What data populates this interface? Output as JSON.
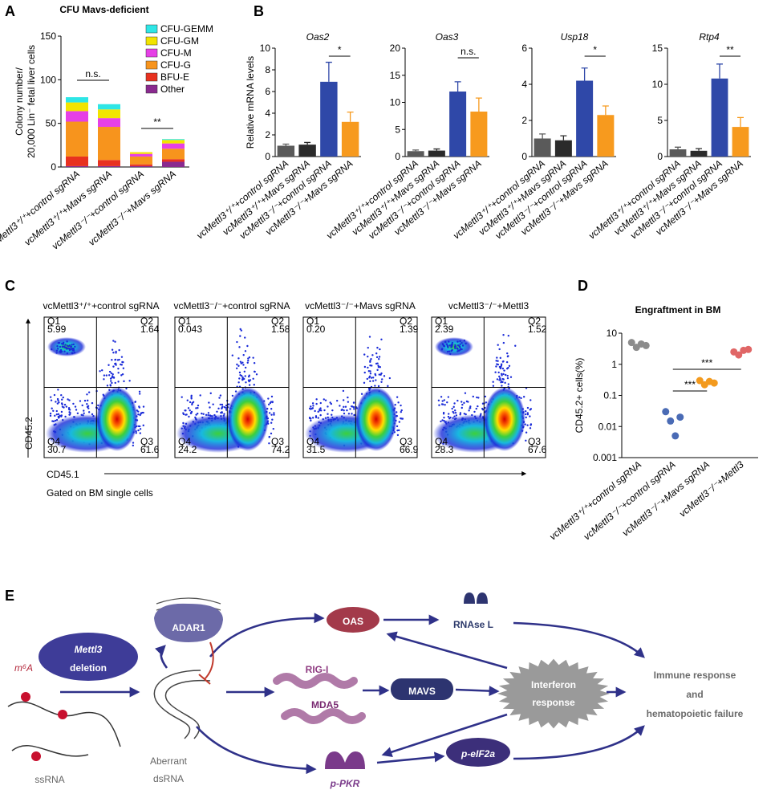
{
  "panel_labels": [
    "A",
    "B",
    "C",
    "D",
    "E"
  ],
  "chart_data": [
    {
      "type": "stacked-bar",
      "title": "CFU Mavs-deficient",
      "y_label": [
        "Colony number/",
        "20,000 Lin⁻ fetal liver cells"
      ],
      "categories": [
        "vcMettl3⁺/⁺+control sgRNA",
        "vcMettl3⁺/⁺+Mavs sgRNA",
        "vcMettl3⁻/⁻+control sgRNA",
        "vcMettl3⁻/⁻+Mavs sgRNA"
      ],
      "series": [
        {
          "name": "CFU-GEMM",
          "color": "#2ee6e6",
          "values": [
            6,
            6,
            0,
            1
          ]
        },
        {
          "name": "CFU-GM",
          "color": "#f2e400",
          "values": [
            10,
            10,
            2,
            4
          ]
        },
        {
          "name": "CFU-M",
          "color": "#e640e6",
          "values": [
            12,
            10,
            3,
            6
          ]
        },
        {
          "name": "CFU-G",
          "color": "#f7941d",
          "values": [
            40,
            38,
            9,
            12
          ]
        },
        {
          "name": "BFU-E",
          "color": "#e8311f",
          "values": [
            11,
            7,
            2,
            3
          ]
        },
        {
          "name": "Other",
          "color": "#8a2a8f",
          "values": [
            1,
            1,
            1,
            6
          ]
        }
      ],
      "ylim": [
        0,
        150
      ],
      "yticks": [
        0,
        50,
        100,
        150
      ],
      "annotations": [
        "n.s.",
        "**"
      ]
    },
    {
      "type": "bar",
      "title": "Oas2",
      "y_label": "Relative mRNA levels",
      "categories": [
        "vcMettl3⁺/⁺+control sgRNA",
        "vcMettl3⁺/⁺+Mavs sgRNA",
        "vcMettl3⁻/⁻+control sgRNA",
        "vcMettl3⁻/⁻+Mavs sgRNA"
      ],
      "colors": [
        "#5a5a5a",
        "#2b2b2b",
        "#2f48a8",
        "#f79a1e"
      ],
      "values": [
        1,
        1.1,
        6.9,
        3.2
      ],
      "errors": [
        0.15,
        0.2,
        1.8,
        0.9
      ],
      "ylim": [
        0,
        10
      ],
      "yticks": [
        0,
        2,
        4,
        6,
        8,
        10
      ],
      "annotations": [
        "*"
      ]
    },
    {
      "type": "bar",
      "title": "Oas3",
      "categories": [
        "vcMettl3⁺/⁺+control sgRNA",
        "vcMettl3⁺/⁺+Mavs sgRNA",
        "vcMettl3⁻/⁻+control sgRNA",
        "vcMettl3⁻/⁻+Mavs sgRNA"
      ],
      "colors": [
        "#5a5a5a",
        "#2b2b2b",
        "#2f48a8",
        "#f79a1e"
      ],
      "values": [
        1,
        1.1,
        12,
        8.3
      ],
      "errors": [
        0.2,
        0.3,
        1.8,
        2.5
      ],
      "ylim": [
        0,
        20
      ],
      "yticks": [
        0,
        5,
        10,
        15,
        20
      ],
      "annotations": [
        "n.s."
      ]
    },
    {
      "type": "bar",
      "title": "Usp18",
      "categories": [
        "vcMettl3⁺/⁺+control sgRNA",
        "vcMettl3⁺/⁺+Mavs sgRNA",
        "vcMettl3⁻/⁻+control sgRNA",
        "vcMettl3⁻/⁻+Mavs sgRNA"
      ],
      "colors": [
        "#5a5a5a",
        "#2b2b2b",
        "#2f48a8",
        "#f79a1e"
      ],
      "values": [
        1,
        0.9,
        4.2,
        2.3
      ],
      "errors": [
        0.25,
        0.25,
        0.7,
        0.5
      ],
      "ylim": [
        0,
        6
      ],
      "yticks": [
        0,
        2,
        4,
        6
      ],
      "annotations": [
        "*"
      ]
    },
    {
      "type": "bar",
      "title": "Rtp4",
      "categories": [
        "vcMettl3⁺/⁺+control sgRNA",
        "vcMettl3⁺/⁺+Mavs sgRNA",
        "vcMettl3⁻/⁻+control sgRNA",
        "vcMettl3⁻/⁻+Mavs sgRNA"
      ],
      "colors": [
        "#5a5a5a",
        "#2b2b2b",
        "#2f48a8",
        "#f79a1e"
      ],
      "values": [
        1,
        0.8,
        10.8,
        4.1
      ],
      "errors": [
        0.3,
        0.3,
        2,
        1.3
      ],
      "ylim": [
        0,
        15
      ],
      "yticks": [
        0,
        5,
        10,
        15
      ],
      "annotations": [
        "**"
      ]
    },
    {
      "type": "dot",
      "title": "Engraftment in BM",
      "y_label": "CD45.2+ cells(%)",
      "log_y": true,
      "categories": [
        "vcMettl3⁺/⁺+control sgRNA",
        "vcMettl3⁻/⁻+control sgRNA",
        "vcMettl3⁻/⁻+Mavs sgRNA",
        "vcMettl3⁻/⁻+Mettl3"
      ],
      "groups": [
        {
          "color": "#8c8c8c",
          "values": [
            5,
            4,
            3.5,
            4.5
          ]
        },
        {
          "color": "#4a6bb5",
          "values": [
            0.03,
            0.02,
            0.015,
            0.005
          ]
        },
        {
          "color": "#f39a1e",
          "values": [
            0.3,
            0.25,
            0.22,
            0.28
          ]
        },
        {
          "color": "#e06666",
          "values": [
            2.5,
            3,
            2,
            2.8
          ]
        }
      ],
      "ylim": [
        0.001,
        10
      ],
      "yticks": [
        0.001,
        0.01,
        0.1,
        1,
        10
      ],
      "annotations": [
        "***",
        "***"
      ]
    }
  ],
  "flow": {
    "y_label": "CD45.2",
    "x_label": "CD45.1",
    "note": "Gated on BM single cells",
    "plots": [
      {
        "title": "vcMettl3⁺/⁺+control sgRNA",
        "quadrants": [
          {
            "name": "Q1",
            "value": "5.99"
          },
          {
            "name": "Q2",
            "value": "1.64"
          },
          {
            "name": "Q3",
            "value": "61.6"
          },
          {
            "name": "Q4",
            "value": "30.7"
          }
        ]
      },
      {
        "title": "vcMettl3⁻/⁻+control sgRNA",
        "quadrants": [
          {
            "name": "Q1",
            "value": "0.043"
          },
          {
            "name": "Q2",
            "value": "1.58"
          },
          {
            "name": "Q3",
            "value": "74.2"
          },
          {
            "name": "Q4",
            "value": "24.2"
          }
        ]
      },
      {
        "title": "vcMettl3⁻/⁻+Mavs sgRNA",
        "quadrants": [
          {
            "name": "Q1",
            "value": "0.20"
          },
          {
            "name": "Q2",
            "value": "1.39"
          },
          {
            "name": "Q3",
            "value": "66.9"
          },
          {
            "name": "Q4",
            "value": "31.5"
          }
        ]
      },
      {
        "title": "vcMettl3⁻/⁻+Mettl3",
        "quadrants": [
          {
            "name": "Q1",
            "value": "2.39"
          },
          {
            "name": "Q2",
            "value": "1.52"
          },
          {
            "name": "Q3",
            "value": "67.6"
          },
          {
            "name": "Q4",
            "value": "28.3"
          }
        ]
      }
    ]
  },
  "diagram": {
    "m6a": "m⁶A",
    "mettl3_deletion": [
      "Mettl3",
      "deletion"
    ],
    "ssrna": "ssRNA",
    "dsrna": [
      "Aberrant",
      "dsRNA"
    ],
    "adar1": "ADAR1",
    "oas": "OAS",
    "rnase_l": "RNAse L",
    "rig_i": "RIG-I",
    "mda5": "MDA5",
    "mavs": "MAVS",
    "interferon": [
      "Interferon",
      "response"
    ],
    "p_pkr": "p-PKR",
    "p_eif2a": "p-eIF2a",
    "outcome": [
      "Immune response",
      "and",
      "hematopoietic failure"
    ]
  }
}
